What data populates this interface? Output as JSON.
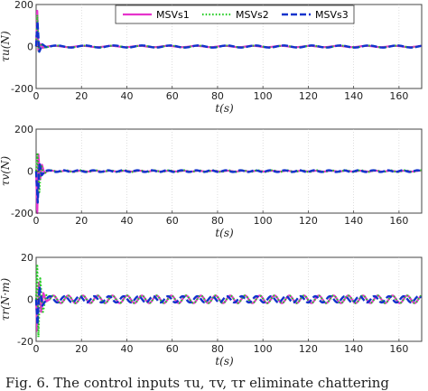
{
  "caption": "Fig. 6.  The control inputs τu, τv, τr eliminate chattering",
  "colors": {
    "MSVs1": "#e633cc",
    "MSVs2": "#22cc22",
    "MSVs3": "#1133cc"
  },
  "chart_data": [
    {
      "type": "line",
      "ylabel": "τu(N)",
      "xlabel": "t(s)",
      "xlim": [
        0,
        170
      ],
      "ylim": [
        -200,
        200
      ],
      "xticks": [
        0,
        20,
        40,
        60,
        80,
        100,
        120,
        140,
        160
      ],
      "yticks": [
        200,
        0,
        -200
      ],
      "grid": true,
      "legend": {
        "placement": "top",
        "entries": [
          "MSVs1",
          "MSVs2",
          "MSVs3"
        ]
      },
      "series": [
        {
          "name": "MSVs1",
          "style": "solid",
          "transient": [
            [
              0,
              0
            ],
            [
              0.5,
              170
            ],
            [
              1.0,
              -20
            ],
            [
              2,
              12
            ],
            [
              3,
              -6
            ],
            [
              5,
              0
            ]
          ],
          "steady": {
            "amplitude": 3,
            "period": 12.5
          }
        },
        {
          "name": "MSVs2",
          "style": "dotted",
          "transient": [
            [
              0,
              0
            ],
            [
              0.5,
              150
            ],
            [
              1.2,
              -30
            ],
            [
              2.5,
              15
            ],
            [
              4,
              -5
            ],
            [
              6,
              0
            ]
          ],
          "steady": {
            "amplitude": 4,
            "period": 12.5
          }
        },
        {
          "name": "MSVs3",
          "style": "dashed",
          "transient": [
            [
              0,
              0
            ],
            [
              0.6,
              120
            ],
            [
              1.4,
              -25
            ],
            [
              2.8,
              10
            ],
            [
              4.5,
              -3
            ],
            [
              6,
              0
            ]
          ],
          "steady": {
            "amplitude": 5,
            "period": 12.5
          }
        }
      ]
    },
    {
      "type": "line",
      "ylabel": "τv(N)",
      "xlabel": "t(s)",
      "xlim": [
        0,
        170
      ],
      "ylim": [
        -200,
        200
      ],
      "xticks": [
        0,
        20,
        40,
        60,
        80,
        100,
        120,
        140,
        160
      ],
      "yticks": [
        200,
        0,
        -200
      ],
      "grid": true,
      "series": [
        {
          "name": "MSVs1",
          "style": "solid",
          "transient": [
            [
              0,
              0
            ],
            [
              0.5,
              -200
            ],
            [
              1.0,
              80
            ],
            [
              1.8,
              -40
            ],
            [
              2.6,
              30
            ],
            [
              3.6,
              -10
            ],
            [
              5,
              0
            ]
          ],
          "steady": {
            "amplitude": 2,
            "period": 6.5
          }
        },
        {
          "name": "MSVs2",
          "style": "dotted",
          "transient": [
            [
              0,
              0
            ],
            [
              0.6,
              80
            ],
            [
              1.4,
              -100
            ],
            [
              2.2,
              30
            ],
            [
              3.2,
              -15
            ],
            [
              5,
              0
            ]
          ],
          "steady": {
            "amplitude": 4,
            "period": 6.5
          }
        },
        {
          "name": "MSVs3",
          "style": "dashed",
          "transient": [
            [
              0,
              0
            ],
            [
              0.7,
              -150
            ],
            [
              1.5,
              40
            ],
            [
              2.5,
              -20
            ],
            [
              4,
              0
            ]
          ],
          "steady": {
            "amplitude": 4,
            "period": 6.5
          }
        }
      ]
    },
    {
      "type": "line",
      "ylabel": "τr(N·m)",
      "xlabel": "t(s)",
      "xlim": [
        0,
        170
      ],
      "ylim": [
        -20,
        20
      ],
      "xticks": [
        0,
        20,
        40,
        60,
        80,
        100,
        120,
        140,
        160
      ],
      "yticks": [
        20,
        0,
        -20
      ],
      "grid": true,
      "series": [
        {
          "name": "MSVs1",
          "style": "solid",
          "transient": [
            [
              0,
              0
            ],
            [
              0.5,
              -15
            ],
            [
              1.2,
              8
            ],
            [
              2.2,
              -6
            ],
            [
              3.2,
              3
            ],
            [
              4.5,
              -1
            ],
            [
              6,
              0
            ]
          ],
          "steady": {
            "amplitude": 1.8,
            "period": 6.5
          }
        },
        {
          "name": "MSVs2",
          "style": "dotted",
          "transient": [
            [
              0,
              0
            ],
            [
              0.5,
              16
            ],
            [
              1.0,
              -18
            ],
            [
              1.8,
              10
            ],
            [
              3.0,
              -6
            ],
            [
              4.5,
              2
            ],
            [
              6,
              0
            ]
          ],
          "steady": {
            "amplitude": 1.8,
            "period": 6.5
          }
        },
        {
          "name": "MSVs3",
          "style": "dashed",
          "transient": [
            [
              0,
              0
            ],
            [
              0.6,
              -12
            ],
            [
              1.5,
              6
            ],
            [
              2.8,
              -3
            ],
            [
              4.5,
              0
            ]
          ],
          "steady": {
            "amplitude": 1.5,
            "period": 6.5
          }
        }
      ]
    }
  ]
}
